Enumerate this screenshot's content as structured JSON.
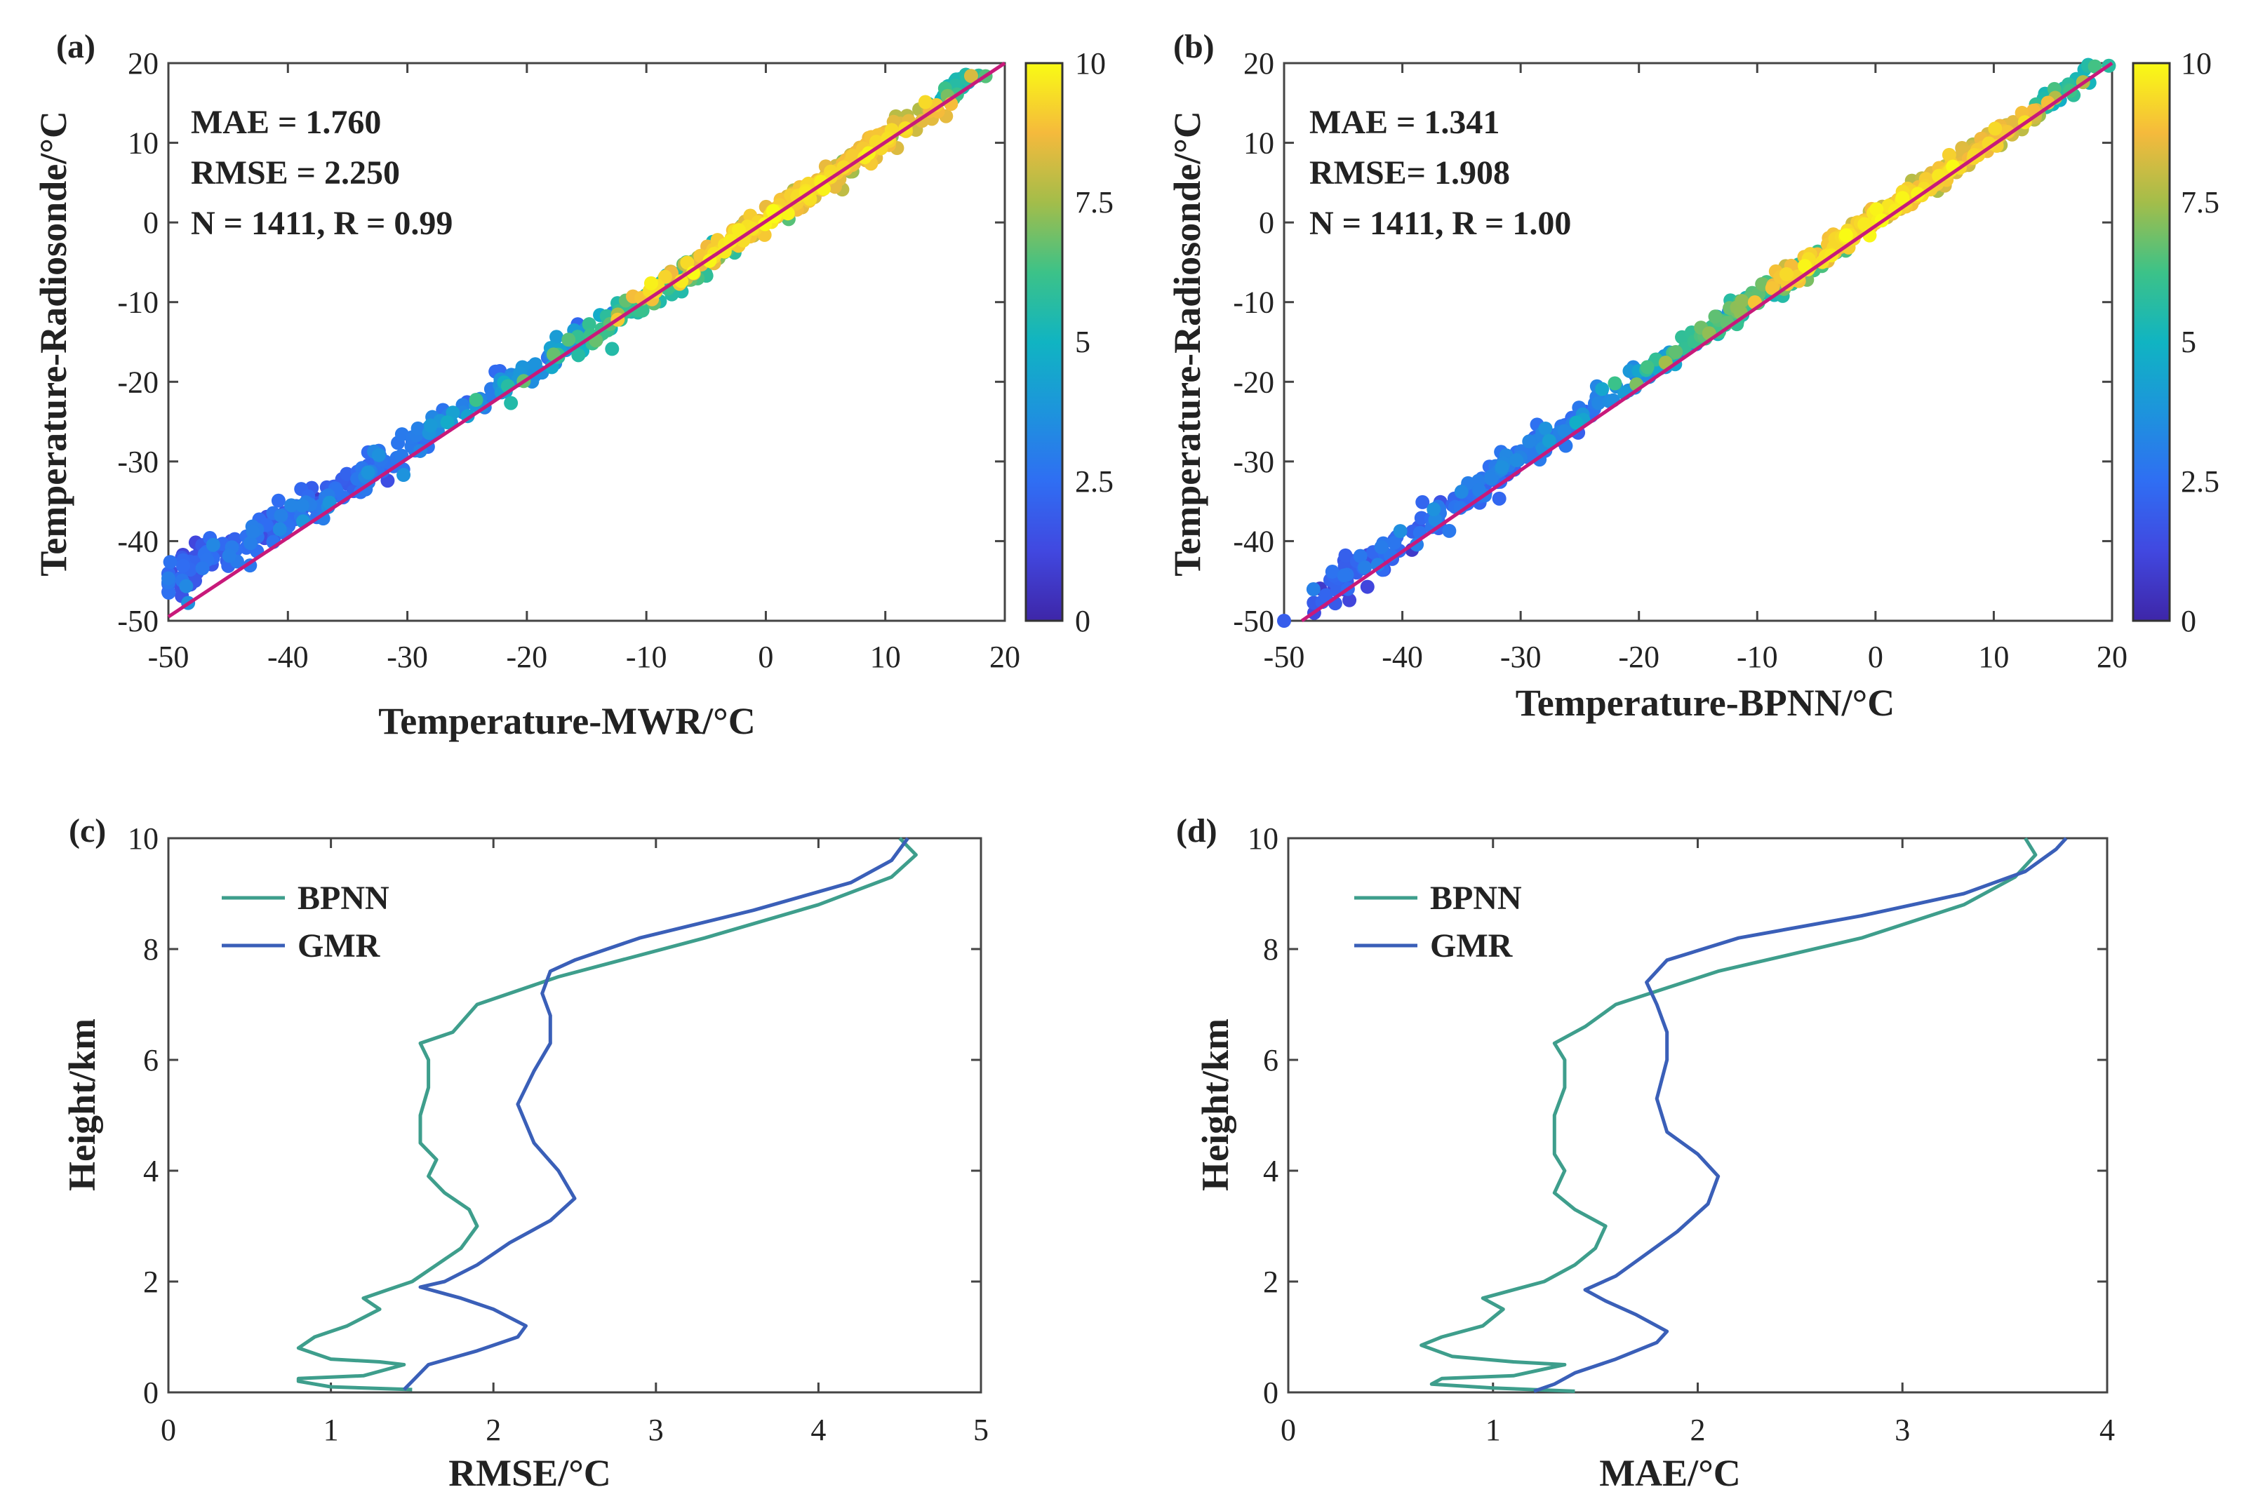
{
  "chart_data": [
    {
      "panel": "(a)",
      "type": "scatter",
      "xlabel": "Temperature-MWR/°C",
      "ylabel": "Temperature-Radiosonde/°C",
      "xlim": [
        -50,
        20
      ],
      "ylim": [
        -50,
        20
      ],
      "xticks": [
        -50,
        -40,
        -30,
        -20,
        -10,
        0,
        10,
        20
      ],
      "yticks": [
        -50,
        -40,
        -30,
        -20,
        -10,
        0,
        10,
        20
      ],
      "stats": [
        "MAE = 1.760",
        "RMSE = 2.250",
        "N = 1411, R = 0.99"
      ],
      "fit_line": [
        [
          -50,
          -49.5
        ],
        [
          20,
          20
        ]
      ],
      "colorbar": {
        "range": [
          0,
          10
        ],
        "ticks": [
          "0",
          "2.5",
          "5",
          "7.5",
          "10"
        ]
      },
      "clusters": [
        {
          "x": -48.5,
          "y": -43,
          "sx": 1.2,
          "sy": 3,
          "d": 2.0,
          "n": 30
        },
        {
          "x": -44,
          "y": -40,
          "sx": 4,
          "sy": 2.5,
          "d": 2.3,
          "n": 45
        },
        {
          "x": -38,
          "y": -35.5,
          "sx": 5,
          "sy": 2.5,
          "d": 2.5,
          "n": 55
        },
        {
          "x": -28,
          "y": -26.5,
          "sx": 6,
          "sy": 2.5,
          "d": 2.9,
          "n": 70
        },
        {
          "x": -20,
          "y": -18.5,
          "sx": 4,
          "sy": 2,
          "d": 3.6,
          "n": 55
        },
        {
          "x": -10,
          "y": -9.5,
          "sx": 5,
          "sy": 2,
          "d": 6.0,
          "n": 110
        },
        {
          "x": 0,
          "y": 0.5,
          "sx": 5,
          "sy": 1.5,
          "d": 8.9,
          "n": 190
        },
        {
          "x": 8,
          "y": 8.5,
          "sx": 3.5,
          "sy": 2,
          "d": 8.3,
          "n": 130
        },
        {
          "x": 16,
          "y": 17,
          "sx": 1.5,
          "sy": 1.5,
          "d": 5.5,
          "n": 25
        }
      ]
    },
    {
      "panel": "(b)",
      "type": "scatter",
      "xlabel": "Temperature-BPNN/°C",
      "ylabel": "Temperature-Radiosonde/°C",
      "xlim": [
        -50,
        20
      ],
      "ylim": [
        -50,
        20
      ],
      "xticks": [
        -50,
        -40,
        -30,
        -20,
        -10,
        0,
        10,
        20
      ],
      "yticks": [
        -50,
        -40,
        -30,
        -20,
        -10,
        0,
        10,
        20
      ],
      "stats": [
        "MAE = 1.341",
        "RMSE= 1.908",
        "N = 1411, R = 1.00"
      ],
      "fit_line": [
        [
          -48.5,
          -50
        ],
        [
          20,
          20
        ]
      ],
      "colorbar": {
        "range": [
          0,
          10
        ],
        "ticks": [
          "0",
          "2.5",
          "5",
          "7.5",
          "10"
        ]
      },
      "clusters": [
        {
          "x": -44,
          "y": -44,
          "sx": 2,
          "sy": 3,
          "d": 2.2,
          "n": 45
        },
        {
          "x": -36,
          "y": -36,
          "sx": 4,
          "sy": 2.5,
          "d": 2.4,
          "n": 70
        },
        {
          "x": -27,
          "y": -26.5,
          "sx": 4,
          "sy": 2,
          "d": 2.8,
          "n": 70
        },
        {
          "x": -18,
          "y": -17.5,
          "sx": 3,
          "sy": 1.5,
          "d": 4.0,
          "n": 45
        },
        {
          "x": -10,
          "y": -9.5,
          "sx": 4,
          "sy": 1.5,
          "d": 6.2,
          "n": 110
        },
        {
          "x": 0,
          "y": 0.5,
          "sx": 4,
          "sy": 1.5,
          "d": 9.0,
          "n": 190
        },
        {
          "x": 8,
          "y": 8.5,
          "sx": 3.5,
          "sy": 1.5,
          "d": 8.3,
          "n": 130
        },
        {
          "x": 16,
          "y": 16.5,
          "sx": 1.5,
          "sy": 1.5,
          "d": 5.5,
          "n": 25
        }
      ]
    },
    {
      "panel": "(c)",
      "type": "line",
      "xlabel": "RMSE/°C",
      "ylabel": "Height/km",
      "xlim": [
        0,
        5
      ],
      "ylim": [
        0,
        10
      ],
      "xticks": [
        0,
        1,
        2,
        3,
        4,
        5
      ],
      "yticks": [
        0,
        2,
        4,
        6,
        8,
        10
      ],
      "series": [
        {
          "name": "BPNN",
          "color": "#3e9e8c",
          "points": [
            [
              1.5,
              0.05
            ],
            [
              1.0,
              0.1
            ],
            [
              0.8,
              0.2
            ],
            [
              0.8,
              0.25
            ],
            [
              1.2,
              0.3
            ],
            [
              1.45,
              0.5
            ],
            [
              1.3,
              0.55
            ],
            [
              1.0,
              0.6
            ],
            [
              0.8,
              0.8
            ],
            [
              0.9,
              1.0
            ],
            [
              1.1,
              1.2
            ],
            [
              1.3,
              1.5
            ],
            [
              1.2,
              1.7
            ],
            [
              1.35,
              1.85
            ],
            [
              1.5,
              2.0
            ],
            [
              1.65,
              2.3
            ],
            [
              1.8,
              2.6
            ],
            [
              1.9,
              3.0
            ],
            [
              1.85,
              3.3
            ],
            [
              1.7,
              3.6
            ],
            [
              1.6,
              3.9
            ],
            [
              1.65,
              4.2
            ],
            [
              1.55,
              4.5
            ],
            [
              1.55,
              5.0
            ],
            [
              1.6,
              5.5
            ],
            [
              1.6,
              6.0
            ],
            [
              1.55,
              6.3
            ],
            [
              1.75,
              6.5
            ],
            [
              1.9,
              7.0
            ],
            [
              2.4,
              7.5
            ],
            [
              3.3,
              8.2
            ],
            [
              4.0,
              8.8
            ],
            [
              4.45,
              9.3
            ],
            [
              4.6,
              9.7
            ],
            [
              4.5,
              10.0
            ]
          ]
        },
        {
          "name": "GMR",
          "color": "#3a5fb8",
          "points": [
            [
              1.45,
              0.05
            ],
            [
              1.5,
              0.2
            ],
            [
              1.6,
              0.5
            ],
            [
              1.9,
              0.75
            ],
            [
              2.15,
              1.0
            ],
            [
              2.2,
              1.2
            ],
            [
              2.0,
              1.5
            ],
            [
              1.8,
              1.7
            ],
            [
              1.55,
              1.9
            ],
            [
              1.7,
              2.0
            ],
            [
              1.9,
              2.3
            ],
            [
              2.1,
              2.7
            ],
            [
              2.35,
              3.1
            ],
            [
              2.5,
              3.5
            ],
            [
              2.4,
              4.0
            ],
            [
              2.25,
              4.5
            ],
            [
              2.15,
              5.2
            ],
            [
              2.25,
              5.8
            ],
            [
              2.35,
              6.3
            ],
            [
              2.35,
              6.8
            ],
            [
              2.3,
              7.2
            ],
            [
              2.35,
              7.6
            ],
            [
              2.5,
              7.8
            ],
            [
              2.9,
              8.2
            ],
            [
              3.6,
              8.7
            ],
            [
              4.2,
              9.2
            ],
            [
              4.45,
              9.6
            ],
            [
              4.55,
              10.0
            ]
          ]
        }
      ]
    },
    {
      "panel": "(d)",
      "type": "line",
      "xlabel": "MAE/°C",
      "ylabel": "Height/km",
      "xlim": [
        0,
        4
      ],
      "ylim": [
        0,
        10
      ],
      "xticks": [
        0,
        1,
        2,
        3,
        4
      ],
      "yticks": [
        0,
        2,
        4,
        6,
        8,
        10
      ],
      "series": [
        {
          "name": "BPNN",
          "color": "#3e9e8c",
          "points": [
            [
              1.4,
              0.02
            ],
            [
              1.0,
              0.08
            ],
            [
              0.7,
              0.15
            ],
            [
              0.75,
              0.25
            ],
            [
              1.1,
              0.3
            ],
            [
              1.35,
              0.5
            ],
            [
              1.1,
              0.55
            ],
            [
              0.8,
              0.65
            ],
            [
              0.65,
              0.85
            ],
            [
              0.75,
              1.0
            ],
            [
              0.95,
              1.2
            ],
            [
              1.05,
              1.5
            ],
            [
              0.95,
              1.7
            ],
            [
              1.1,
              1.85
            ],
            [
              1.25,
              2.0
            ],
            [
              1.4,
              2.3
            ],
            [
              1.5,
              2.6
            ],
            [
              1.55,
              3.0
            ],
            [
              1.4,
              3.3
            ],
            [
              1.3,
              3.6
            ],
            [
              1.35,
              4.0
            ],
            [
              1.3,
              4.3
            ],
            [
              1.3,
              5.0
            ],
            [
              1.35,
              5.5
            ],
            [
              1.35,
              6.0
            ],
            [
              1.3,
              6.3
            ],
            [
              1.45,
              6.6
            ],
            [
              1.6,
              7.0
            ],
            [
              2.1,
              7.6
            ],
            [
              2.8,
              8.2
            ],
            [
              3.3,
              8.8
            ],
            [
              3.55,
              9.3
            ],
            [
              3.65,
              9.7
            ],
            [
              3.6,
              10.0
            ]
          ]
        },
        {
          "name": "GMR",
          "color": "#3a5fb8",
          "points": [
            [
              1.2,
              0.02
            ],
            [
              1.3,
              0.15
            ],
            [
              1.4,
              0.35
            ],
            [
              1.6,
              0.6
            ],
            [
              1.8,
              0.9
            ],
            [
              1.85,
              1.1
            ],
            [
              1.7,
              1.4
            ],
            [
              1.55,
              1.65
            ],
            [
              1.45,
              1.85
            ],
            [
              1.6,
              2.1
            ],
            [
              1.75,
              2.5
            ],
            [
              1.9,
              2.9
            ],
            [
              2.05,
              3.4
            ],
            [
              2.1,
              3.9
            ],
            [
              2.0,
              4.3
            ],
            [
              1.85,
              4.7
            ],
            [
              1.8,
              5.3
            ],
            [
              1.85,
              6.0
            ],
            [
              1.85,
              6.5
            ],
            [
              1.8,
              7.0
            ],
            [
              1.75,
              7.4
            ],
            [
              1.85,
              7.8
            ],
            [
              2.2,
              8.2
            ],
            [
              2.8,
              8.6
            ],
            [
              3.3,
              9.0
            ],
            [
              3.6,
              9.4
            ],
            [
              3.75,
              9.8
            ],
            [
              3.8,
              10.0
            ]
          ]
        }
      ]
    }
  ]
}
